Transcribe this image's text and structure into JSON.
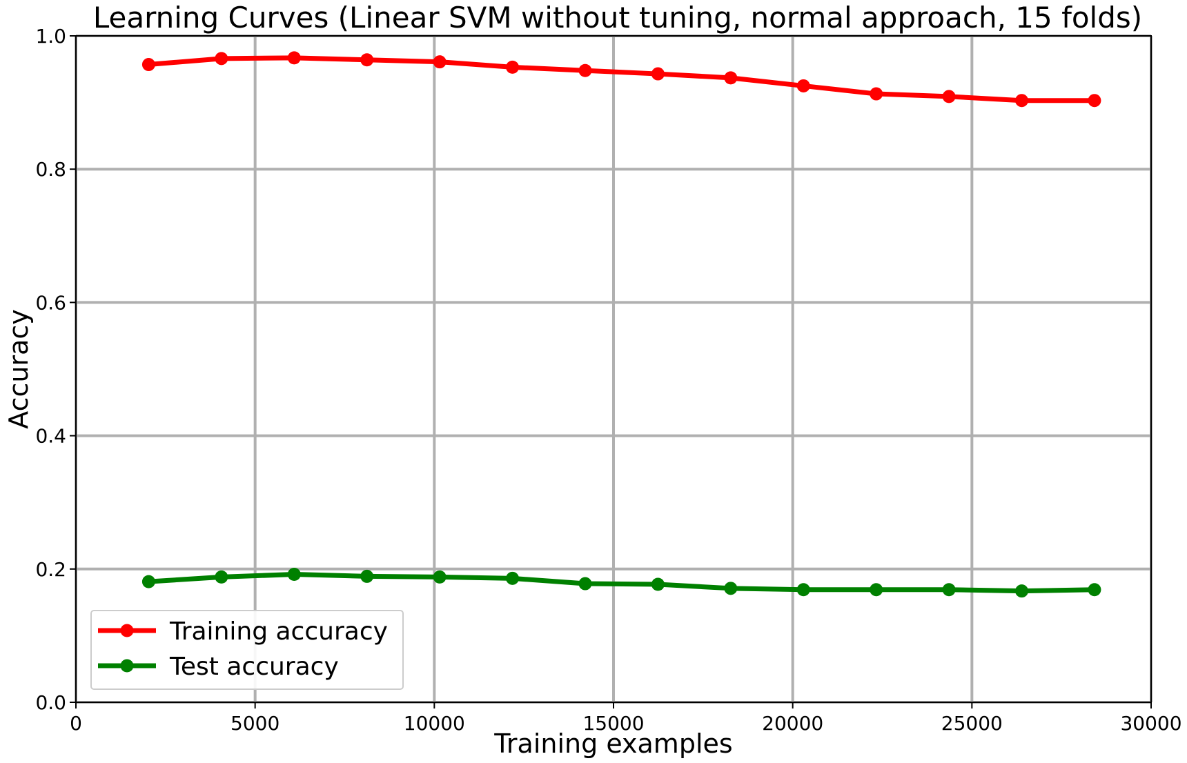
{
  "chart_data": {
    "type": "line",
    "title": "Learning Curves (Linear SVM without tuning, normal approach, 15 folds)",
    "xlabel": "Training examples",
    "ylabel": "Accuracy",
    "xlim": [
      0,
      30000
    ],
    "ylim": [
      0.0,
      1.0
    ],
    "xticks": [
      0,
      5000,
      10000,
      15000,
      20000,
      25000,
      30000
    ],
    "xtick_labels": [
      "0",
      "5000",
      "10000",
      "15000",
      "20000",
      "25000",
      "30000"
    ],
    "yticks": [
      0.0,
      0.2,
      0.4,
      0.6,
      0.8,
      1.0
    ],
    "ytick_labels": [
      "0.0",
      "0.2",
      "0.4",
      "0.6",
      "0.8",
      "1.0"
    ],
    "grid": true,
    "legend_position": "lower-left",
    "x": [
      2030,
      4060,
      6090,
      8120,
      10150,
      12180,
      14210,
      16240,
      18270,
      20300,
      22330,
      24360,
      26390,
      28420
    ],
    "series": [
      {
        "name": "Training accuracy",
        "color": "#ff0000",
        "marker": "circle",
        "values": [
          0.957,
          0.966,
          0.967,
          0.964,
          0.961,
          0.953,
          0.948,
          0.943,
          0.937,
          0.925,
          0.913,
          0.909,
          0.903,
          0.903
        ]
      },
      {
        "name": "Test accuracy",
        "color": "#008000",
        "marker": "circle",
        "values": [
          0.181,
          0.188,
          0.192,
          0.189,
          0.188,
          0.186,
          0.178,
          0.177,
          0.171,
          0.169,
          0.169,
          0.169,
          0.167,
          0.169
        ]
      }
    ]
  }
}
